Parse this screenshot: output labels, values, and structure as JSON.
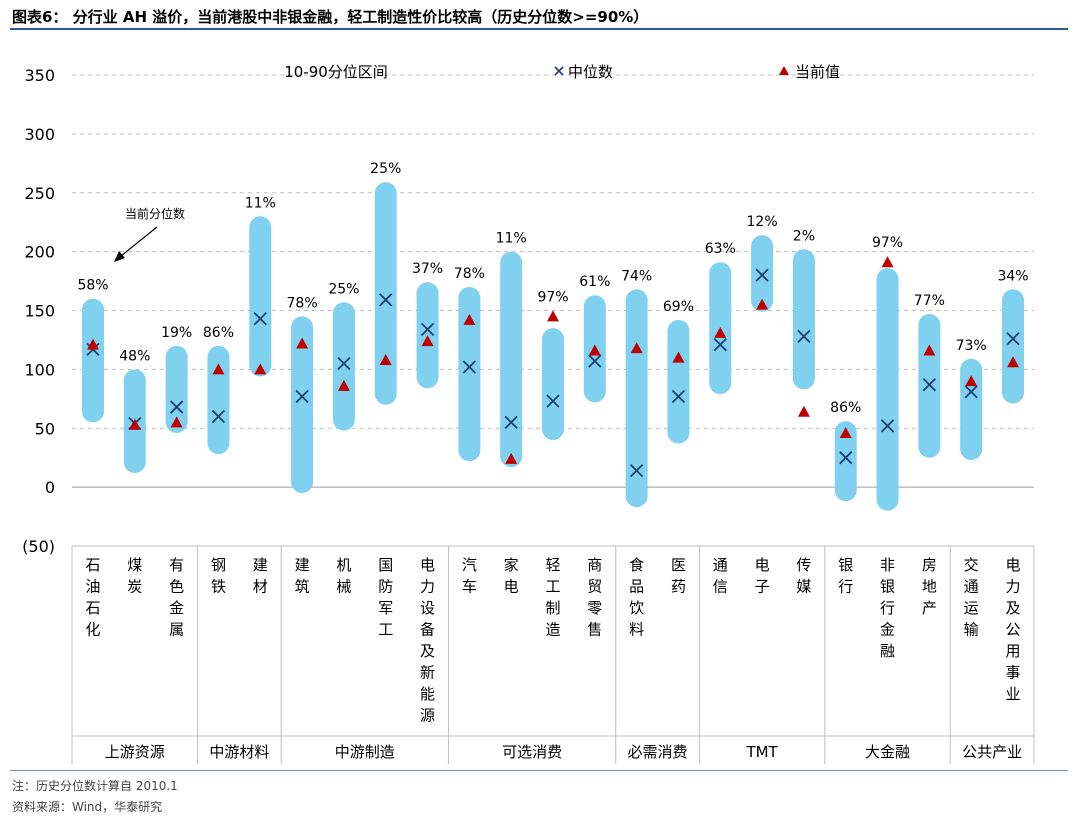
{
  "header": {
    "title": "图表6： 分行业 AH 溢价，当前港股中非银金融，轻工制造性价比较高（历史分位数>=90%）"
  },
  "footer": {
    "note": "注：历史分位数计算自 2010.1",
    "source": "资料来源：Wind，华泰研究"
  },
  "colors": {
    "band": "#7fd1ef",
    "median": "#1f3f74",
    "current": "#c00000",
    "grid": "#bfbfbf",
    "rule": "#2a5b9a"
  },
  "chart_data": {
    "type": "range-band",
    "title": "分行业 AH 溢价，当前港股中非银金融，轻工制造性价比较高（历史分位数>=90%）",
    "ylim": [
      -50,
      350
    ],
    "yticks": [
      -50,
      0,
      50,
      100,
      150,
      200,
      250,
      300,
      350
    ],
    "ytick_labels": [
      "(50)",
      "0",
      "50",
      "100",
      "150",
      "200",
      "250",
      "300",
      "350"
    ],
    "legend": {
      "range": "10-90分位区间",
      "median": "中位数",
      "current": "当前值",
      "position": "top"
    },
    "annotation": "当前分位数",
    "categories": [
      {
        "name": "石油石化",
        "p10": 55,
        "p90": 160,
        "median": 117,
        "current": 121,
        "pct": "58%"
      },
      {
        "name": "煤炭",
        "p10": 12,
        "p90": 100,
        "median": 54,
        "current": 53,
        "pct": "48%"
      },
      {
        "name": "有色金属",
        "p10": 46,
        "p90": 120,
        "median": 68,
        "current": 55,
        "pct": "19%"
      },
      {
        "name": "钢铁",
        "p10": 28,
        "p90": 120,
        "median": 60,
        "current": 100,
        "pct": "86%"
      },
      {
        "name": "建材",
        "p10": 94,
        "p90": 230,
        "median": 143,
        "current": 100,
        "pct": "11%"
      },
      {
        "name": "建筑",
        "p10": -5,
        "p90": 145,
        "median": 77,
        "current": 122,
        "pct": "78%"
      },
      {
        "name": "机械",
        "p10": 48,
        "p90": 157,
        "median": 105,
        "current": 86,
        "pct": "25%"
      },
      {
        "name": "国防军工",
        "p10": 70,
        "p90": 259,
        "median": 159,
        "current": 108,
        "pct": "25%"
      },
      {
        "name": "电力设备及新能源",
        "p10": 84,
        "p90": 174,
        "median": 134,
        "current": 124,
        "pct": "37%"
      },
      {
        "name": "汽车",
        "p10": 22,
        "p90": 170,
        "median": 102,
        "current": 142,
        "pct": "78%"
      },
      {
        "name": "家电",
        "p10": 17,
        "p90": 200,
        "median": 55,
        "current": 24,
        "pct": "11%"
      },
      {
        "name": "轻工制造",
        "p10": 40,
        "p90": 135,
        "median": 73,
        "current": 145,
        "pct": "97%"
      },
      {
        "name": "商贸零售",
        "p10": 72,
        "p90": 163,
        "median": 107,
        "current": 116,
        "pct": "61%"
      },
      {
        "name": "食品饮料",
        "p10": -17,
        "p90": 168,
        "median": 14,
        "current": 118,
        "pct": "74%"
      },
      {
        "name": "医药",
        "p10": 37,
        "p90": 142,
        "median": 77,
        "current": 110,
        "pct": "69%"
      },
      {
        "name": "通信",
        "p10": 79,
        "p90": 191,
        "median": 121,
        "current": 131,
        "pct": "63%"
      },
      {
        "name": "电子",
        "p10": 149,
        "p90": 214,
        "median": 180,
        "current": 155,
        "pct": "12%"
      },
      {
        "name": "传媒",
        "p10": 83,
        "p90": 202,
        "median": 128,
        "current": 64,
        "pct": "2%"
      },
      {
        "name": "银行",
        "p10": -12,
        "p90": 56,
        "median": 25,
        "current": 46,
        "pct": "86%"
      },
      {
        "name": "非银行金融",
        "p10": -20,
        "p90": 186,
        "median": 52,
        "current": 191,
        "pct": "97%"
      },
      {
        "name": "房地产",
        "p10": 25,
        "p90": 147,
        "median": 87,
        "current": 116,
        "pct": "77%"
      },
      {
        "name": "交通运输",
        "p10": 23,
        "p90": 109,
        "median": 81,
        "current": 90,
        "pct": "73%"
      },
      {
        "name": "电力及公用事业",
        "p10": 71,
        "p90": 168,
        "median": 126,
        "current": 106,
        "pct": "34%"
      }
    ],
    "groups": [
      {
        "name": "上游资源",
        "span": 3
      },
      {
        "name": "中游材料",
        "span": 2
      },
      {
        "name": "中游制造",
        "span": 4
      },
      {
        "name": "可选消费",
        "span": 4
      },
      {
        "name": "必需消费",
        "span": 2
      },
      {
        "name": "TMT",
        "span": 3
      },
      {
        "name": "大金融",
        "span": 3
      },
      {
        "name": "公共产业",
        "span": 2
      }
    ]
  }
}
